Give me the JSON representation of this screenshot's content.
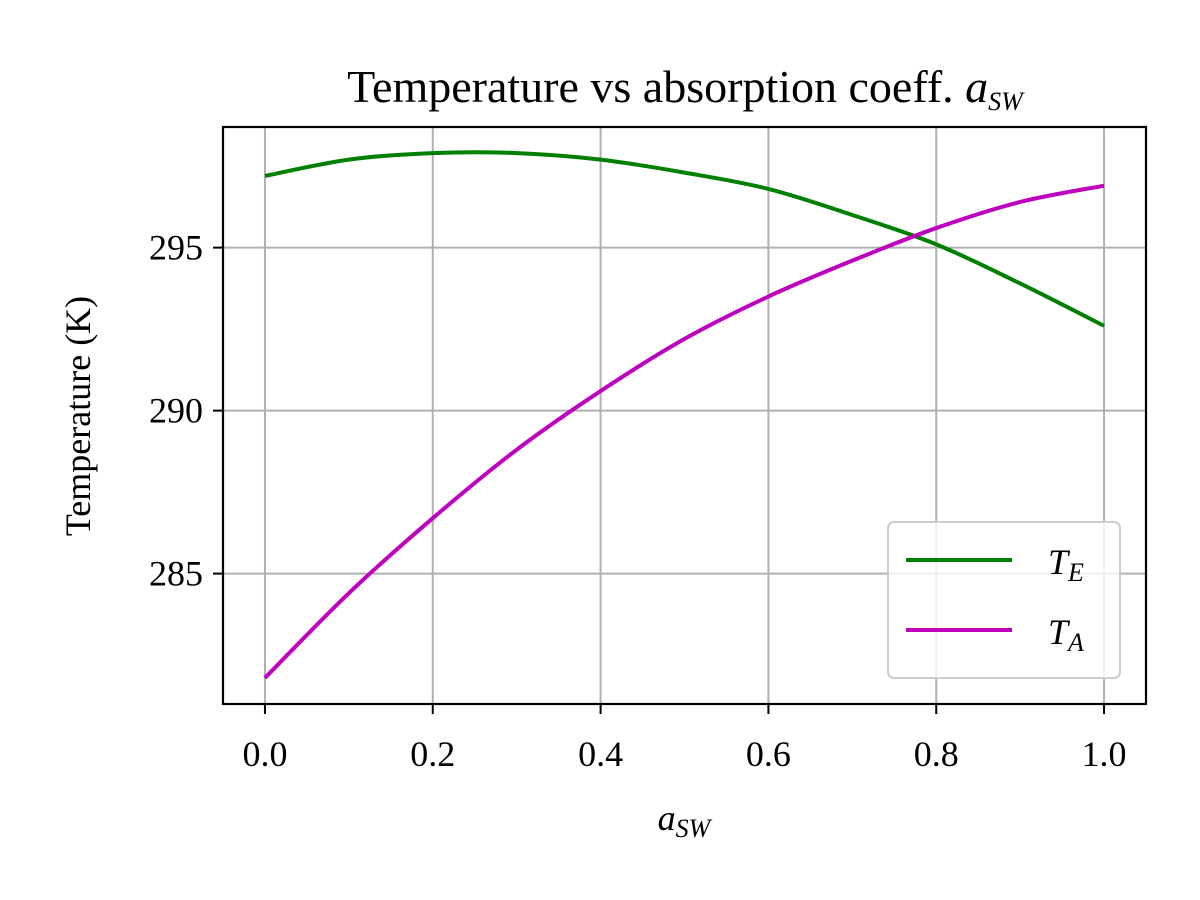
{
  "chart_data": {
    "type": "line",
    "title": {
      "text": "Temperature vs absorption coeff.",
      "math_symbol": "a",
      "math_subscript": "SW"
    },
    "xlabel": {
      "symbol": "a",
      "subscript": "SW"
    },
    "ylabel": "Temperature (K)",
    "xlim": [
      -0.05,
      1.05
    ],
    "ylim": [
      281.0,
      298.7
    ],
    "xticks": [
      0.0,
      0.2,
      0.4,
      0.6,
      0.8,
      1.0
    ],
    "xtick_labels": [
      "0.0",
      "0.2",
      "0.4",
      "0.6",
      "0.8",
      "1.0"
    ],
    "yticks": [
      285,
      290,
      295
    ],
    "ytick_labels": [
      "285",
      "290",
      "295"
    ],
    "grid": true,
    "legend_position": "lower-right",
    "series": [
      {
        "name": "T_E",
        "legend_symbol": "T",
        "legend_subscript": "E",
        "color": "#008000",
        "x": [
          0.0,
          0.1,
          0.2,
          0.3,
          0.4,
          0.5,
          0.6,
          0.7,
          0.8,
          0.9,
          1.0
        ],
        "y": [
          297.2,
          297.7,
          297.9,
          297.9,
          297.7,
          297.3,
          296.8,
          296.0,
          295.1,
          293.9,
          292.6
        ]
      },
      {
        "name": "T_A",
        "legend_symbol": "T",
        "legend_subscript": "A",
        "color": "#bf00bf",
        "x": [
          0.0,
          0.1,
          0.2,
          0.3,
          0.4,
          0.5,
          0.6,
          0.7,
          0.8,
          0.9,
          1.0
        ],
        "y": [
          281.8,
          284.4,
          286.7,
          288.8,
          290.6,
          292.2,
          293.5,
          294.6,
          295.6,
          296.4,
          296.9
        ]
      }
    ]
  }
}
